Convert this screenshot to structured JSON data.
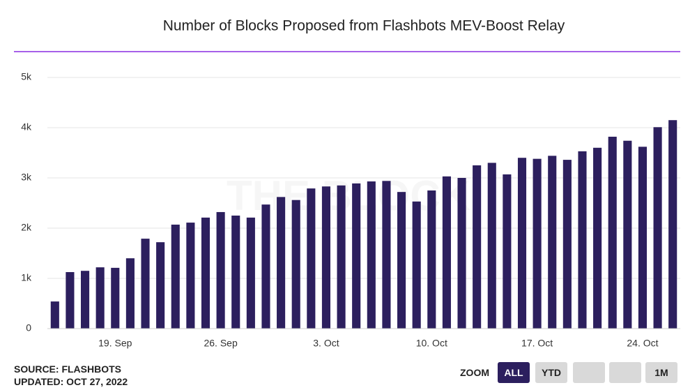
{
  "chart_data": {
    "type": "bar",
    "title": "Number of Blocks Proposed from Flashbots MEV-Boost Relay",
    "watermark": "THE BLOCK",
    "categories": [
      null,
      null,
      null,
      null,
      "19. Sep",
      null,
      null,
      null,
      null,
      null,
      null,
      "26. Sep",
      null,
      null,
      null,
      null,
      null,
      null,
      "3. Oct",
      null,
      null,
      null,
      null,
      null,
      null,
      "10. Oct",
      null,
      null,
      null,
      null,
      null,
      null,
      "17. Oct",
      null,
      null,
      null,
      null,
      null,
      null,
      "24. Oct",
      null,
      null
    ],
    "values": [
      540,
      1125,
      1150,
      1220,
      1210,
      1400,
      1790,
      1720,
      2070,
      2110,
      2210,
      2320,
      2250,
      2210,
      2470,
      2620,
      2560,
      2790,
      2830,
      2850,
      2890,
      2930,
      2940,
      2720,
      2530,
      2750,
      3030,
      3000,
      3250,
      3300,
      3070,
      3400,
      3380,
      3440,
      3360,
      3530,
      3600,
      3820,
      3740,
      3620,
      4010,
      4150
    ],
    "color": "#2c1f5e",
    "ylim": [
      0,
      5000
    ],
    "yticks": [
      0,
      {
        "value": 1000,
        "label": "1k"
      },
      {
        "value": 2000,
        "label": "2k"
      },
      {
        "value": 3000,
        "label": "3k"
      },
      {
        "value": 4000,
        "label": "4k"
      },
      {
        "value": 5000,
        "label": "5k"
      }
    ],
    "grid": true
  },
  "footer": {
    "source": "SOURCE: FLASHBOTS",
    "updated": "UPDATED: OCT 27, 2022"
  },
  "zoom": {
    "label": "ZOOM",
    "buttons": [
      "ALL",
      "YTD",
      "1M"
    ]
  }
}
